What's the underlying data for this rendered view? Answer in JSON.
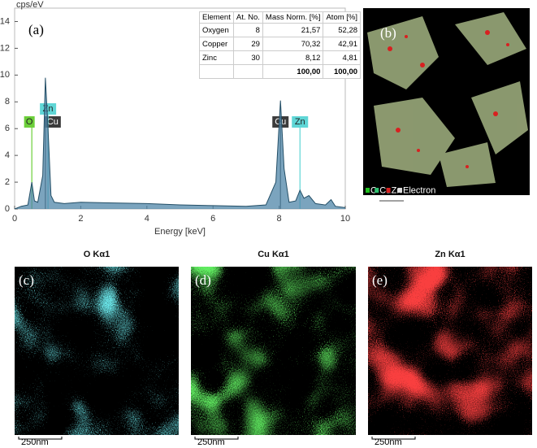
{
  "chart_data": {
    "type": "area",
    "y_label": "cps/eV",
    "x_label": "Energy [keV]",
    "panel_label": "(a)",
    "x": [
      0.0,
      0.2,
      0.4,
      0.45,
      0.52,
      0.6,
      0.7,
      0.85,
      0.93,
      1.01,
      1.1,
      1.2,
      1.5,
      2,
      3,
      4,
      5,
      6,
      7,
      7.6,
      7.9,
      8.04,
      8.15,
      8.3,
      8.5,
      8.63,
      8.75,
      8.9,
      9.1,
      9.4,
      9.57,
      9.7,
      10
    ],
    "values": [
      0,
      0.2,
      0.3,
      1.0,
      2.0,
      0.6,
      0.5,
      2.5,
      9.8,
      6.0,
      1.0,
      0.5,
      0.4,
      0.5,
      0.45,
      0.4,
      0.3,
      0.25,
      0.2,
      0.3,
      2,
      8.1,
      3,
      0.5,
      0.6,
      1.4,
      0.8,
      1.0,
      0.4,
      0.3,
      0.7,
      0.2,
      0.1
    ],
    "color": "#4f86a8",
    "xlim": [
      0,
      10
    ],
    "xticks": [
      0,
      2,
      4,
      6,
      8,
      10
    ],
    "ylim": [
      0,
      15
    ],
    "yticks": [
      0,
      2,
      4,
      6,
      8,
      10,
      12,
      14
    ],
    "peaks": [
      {
        "label": "O",
        "x": 0.52,
        "color": "#6ccf3a"
      },
      {
        "label": "Cu",
        "x": 0.93,
        "color": "#3c3c3c"
      },
      {
        "label": "Zn",
        "x": 1.01,
        "color": "#5fd6d6"
      },
      {
        "label": "Cu",
        "x": 8.04,
        "color": "#3c3c3c"
      },
      {
        "label": "Zn",
        "x": 8.63,
        "color": "#5fd6d6"
      }
    ]
  },
  "table": {
    "columns": [
      "Element",
      "At. No.",
      "Mass Norm. [%]",
      "Atom [%]"
    ],
    "rows": [
      [
        "Oxygen",
        "8",
        "21,57",
        "52,28"
      ],
      [
        "Copper",
        "29",
        "70,32",
        "42,91"
      ],
      [
        "Zinc",
        "30",
        "8,12",
        "4,81"
      ],
      [
        "",
        "",
        "100,00",
        "100,00"
      ]
    ]
  },
  "map_panel": {
    "label": "(b)",
    "legend": [
      "O",
      "Cu",
      "Zn",
      "Electron"
    ]
  },
  "panels": [
    {
      "label": "(c)",
      "title": "O Kα1",
      "scale": "250nm"
    },
    {
      "label": "(d)",
      "title": "Cu Kα1",
      "scale": "250nm"
    },
    {
      "label": "(e)",
      "title": "Zn Kα1",
      "scale": "250nm"
    }
  ]
}
